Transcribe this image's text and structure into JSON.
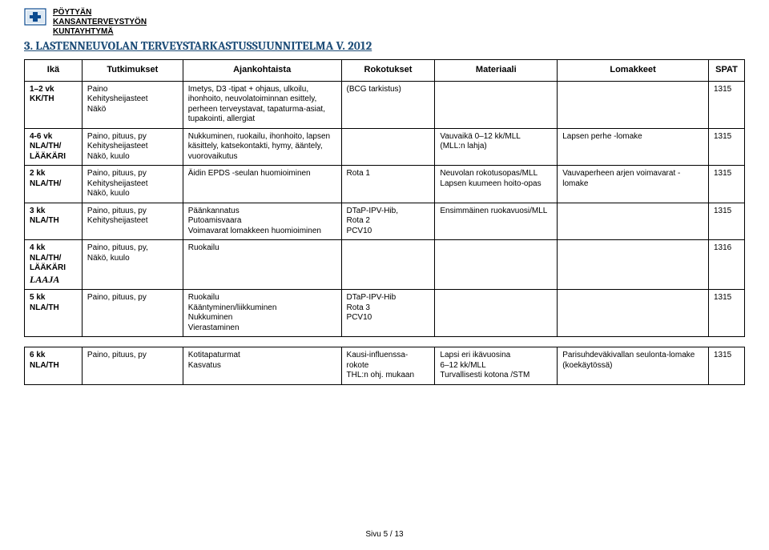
{
  "org": {
    "line1": "PÖYTYÄN",
    "line2": "KANSANTERVEYSTYÖN",
    "line3": "KUNTAYHTYMÄ"
  },
  "section_title": "3. LASTENNEUVOLAN TERVEYSTARKASTUSSUUNNITELMA V. 2012",
  "columns": {
    "ika": "Ikä",
    "tut": "Tutkimukset",
    "ajan": "Ajankohtaista",
    "roko": "Rokotukset",
    "mat": "Materiaali",
    "lom": "Lomakkeet",
    "spat": "SPAT"
  },
  "rows": [
    {
      "ika": "1–2 vk\nKK/TH",
      "tut": "Paino\nKehitysheijasteet\nNäkö",
      "ajan": "Imetys, D3 -tipat + ohjaus, ulkoilu, ihonhoito, neuvolatoiminnan esittely, perheen terveystavat, tapaturma-asiat, tupakointi, allergiat",
      "roko": "(BCG tarkistus)",
      "mat": "",
      "lom": "",
      "spat": "1315"
    },
    {
      "ika": "4-6 vk\nNLA/TH/\nLÄÄKÄRI",
      "tut": "Paino, pituus, py\nKehitysheijasteet\nNäkö, kuulo",
      "ajan": "Nukkuminen, ruokailu, ihonhoito, lapsen käsittely, katsekontakti, hymy, ääntely, vuorovaikutus",
      "roko": "",
      "mat": "Vauvaikä 0–12 kk/MLL\n(MLL:n lahja)",
      "lom": "Lapsen perhe -lomake",
      "spat": "1315"
    },
    {
      "ika": "2 kk\nNLA/TH/",
      "tut": "Paino, pituus, py\nKehitysheijasteet\nNäkö, kuulo",
      "ajan": "Äidin EPDS -seulan huomioiminen",
      "roko": "Rota 1",
      "mat": "Neuvolan rokotusopas/MLL\nLapsen kuumeen hoito-opas",
      "lom": "Vauvaperheen arjen voimavarat -lomake",
      "spat": "1315"
    },
    {
      "ika": "3 kk\nNLA/TH",
      "tut": "Paino, pituus, py\nKehitysheijasteet",
      "ajan": "Päänkannatus\nPutoamisvaara\nVoimavarat lomakkeen huomioiminen",
      "roko": "DTaP-IPV-Hib,\nRota 2\nPCV10",
      "mat": "Ensimmäinen ruokavuosi/MLL",
      "lom": "",
      "spat": "1315"
    },
    {
      "ika_html": "4 kk<br>NLA/TH/<br>LÄÄKÄRI<br><span class=\"laaja\">LAAJA</span>",
      "tut": "Paino, pituus, py,\nNäkö, kuulo",
      "ajan": "Ruokailu",
      "roko": "",
      "mat": "",
      "lom": "",
      "spat": "1316"
    },
    {
      "ika": "5 kk\nNLA/TH",
      "tut": "Paino, pituus, py",
      "ajan": "Ruokailu\nKääntyminen/liikkuminen\nNukkuminen\nVierastaminen",
      "roko": "DTaP-IPV-Hib\nRota 3\nPCV10",
      "mat": "",
      "lom": "",
      "spat": "1315"
    }
  ],
  "row_6kk": {
    "ika": "6 kk\nNLA/TH",
    "tut": "Paino, pituus, py",
    "ajan": "Kotitapaturmat\nKasvatus",
    "roko": "Kausi-influenssa-rokote\nTHL:n ohj. mukaan",
    "mat": "Lapsi eri ikävuosina\n6–12 kk/MLL\nTurvallisesti kotona /STM",
    "lom": "Parisuhdeväkivallan seulonta-lomake (koekäytössä)",
    "spat": "1315"
  },
  "footer": "Sivu 5 / 13",
  "colors": {
    "title": "#1f4e79",
    "border": "#000000",
    "bg": "#ffffff",
    "text": "#000000",
    "logo_border": "#0a4a8f",
    "logo_fill": "#d9e6f2"
  }
}
